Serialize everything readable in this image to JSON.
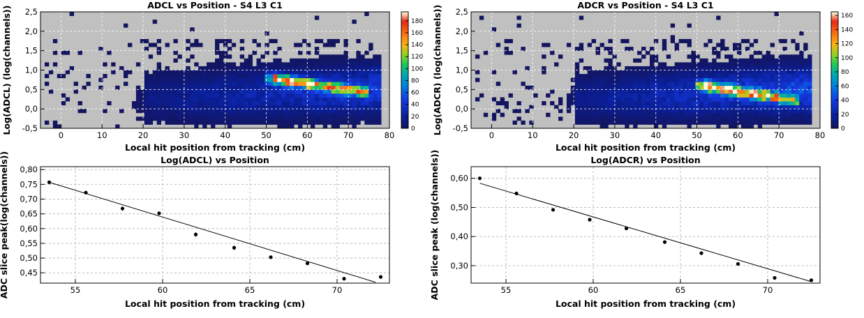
{
  "chart_data": [
    {
      "id": "heat-left",
      "type": "heatmap",
      "title": "ADCL vs Position - S4 L3 C1",
      "xlabel": "Local hit position from tracking (cm)",
      "ylabel": "Log(ADCL) (log(channels))",
      "xlim": [
        -5,
        80
      ],
      "ylim": [
        -0.5,
        2.5
      ],
      "x_ticks": [
        "0",
        "10",
        "20",
        "30",
        "40",
        "50",
        "60",
        "70",
        "80"
      ],
      "y_ticks": [
        "-0,5",
        "0,0",
        "0,5",
        "1,0",
        "1,5",
        "2,0",
        "2,5"
      ],
      "z_max": 195,
      "z_ticks": [
        "0",
        "20",
        "40",
        "60",
        "80",
        "100",
        "120",
        "140",
        "160",
        "180"
      ],
      "background": "#c0c0c0",
      "grid": true,
      "ridge": {
        "x0": 52,
        "y0": 0.78,
        "x1": 72,
        "y1": 0.47,
        "peak": 190
      },
      "seed": 11
    },
    {
      "id": "heat-right",
      "type": "heatmap",
      "title": "ADCR vs Position - S4 L3 C1",
      "xlabel": "Local hit position from tracking (cm)",
      "ylabel": "Log(ADCR) (log(channels))",
      "xlim": [
        -5,
        80
      ],
      "ylim": [
        -0.5,
        2.5
      ],
      "x_ticks": [
        "0",
        "10",
        "20",
        "30",
        "40",
        "50",
        "60",
        "70",
        "80"
      ],
      "y_ticks": [
        "-0,5",
        "0,0",
        "0,5",
        "1,0",
        "1,5",
        "2,0",
        "2,5"
      ],
      "z_max": 165,
      "z_ticks": [
        "0",
        "20",
        "40",
        "60",
        "80",
        "100",
        "120",
        "140",
        "160"
      ],
      "background": "#c0c0c0",
      "grid": true,
      "ridge": {
        "x0": 52,
        "y0": 0.6,
        "x1": 72,
        "y1": 0.25,
        "peak": 160
      },
      "seed": 29
    },
    {
      "id": "fit-left",
      "type": "scatter",
      "title": "Log(ADCL) vs Position",
      "xlabel": "Local hit position from tracking (cm)",
      "ylabel": "ADC slice peak(log(channels))",
      "xlim": [
        53,
        73
      ],
      "ylim": [
        0.415,
        0.81
      ],
      "x_ticks": [
        "55",
        "60",
        "65",
        "70"
      ],
      "y_ticks": [
        "0,45",
        "0,50",
        "0,55",
        "0,60",
        "0,65",
        "0,70",
        "0,75",
        "0,80"
      ],
      "grid": true,
      "points": [
        {
          "x": 53.5,
          "y": 0.757,
          "err": 0.004
        },
        {
          "x": 55.6,
          "y": 0.722,
          "err": 0.006
        },
        {
          "x": 57.7,
          "y": 0.668,
          "err": 0.007
        },
        {
          "x": 59.8,
          "y": 0.652,
          "err": 0.005
        },
        {
          "x": 61.9,
          "y": 0.58,
          "err": 0.007
        },
        {
          "x": 64.1,
          "y": 0.535,
          "err": 0.007
        },
        {
          "x": 66.2,
          "y": 0.503,
          "err": 0.006
        },
        {
          "x": 68.3,
          "y": 0.482,
          "err": 0.005
        },
        {
          "x": 70.4,
          "y": 0.43,
          "err": 0.006
        },
        {
          "x": 72.5,
          "y": 0.436,
          "err": 0.006
        }
      ],
      "fit": {
        "x0": 53.5,
        "y0": 0.757,
        "x1": 72.2,
        "y1": 0.418
      }
    },
    {
      "id": "fit-right",
      "type": "scatter",
      "title": "Log(ADCR) vs Position",
      "xlabel": "Local hit position from tracking (cm)",
      "ylabel": "ADC slice peak (log(channels))",
      "xlim": [
        53,
        73
      ],
      "ylim": [
        0.24,
        0.64
      ],
      "x_ticks": [
        "55",
        "60",
        "65",
        "70"
      ],
      "y_ticks": [
        "0,30",
        "0,40",
        "0,50",
        "0,60"
      ],
      "grid": true,
      "points": [
        {
          "x": 53.5,
          "y": 0.6,
          "err": 0.004
        },
        {
          "x": 55.6,
          "y": 0.548,
          "err": 0.005
        },
        {
          "x": 57.7,
          "y": 0.492,
          "err": 0.004
        },
        {
          "x": 59.8,
          "y": 0.458,
          "err": 0.004
        },
        {
          "x": 61.9,
          "y": 0.428,
          "err": 0.004
        },
        {
          "x": 64.1,
          "y": 0.381,
          "err": 0.004
        },
        {
          "x": 66.2,
          "y": 0.343,
          "err": 0.004
        },
        {
          "x": 68.3,
          "y": 0.306,
          "err": 0.004
        },
        {
          "x": 70.4,
          "y": 0.258,
          "err": 0.005
        },
        {
          "x": 72.5,
          "y": 0.25,
          "err": 0.006
        }
      ],
      "fit": {
        "x0": 53.5,
        "y0": 0.583,
        "x1": 72.5,
        "y1": 0.245
      }
    }
  ]
}
